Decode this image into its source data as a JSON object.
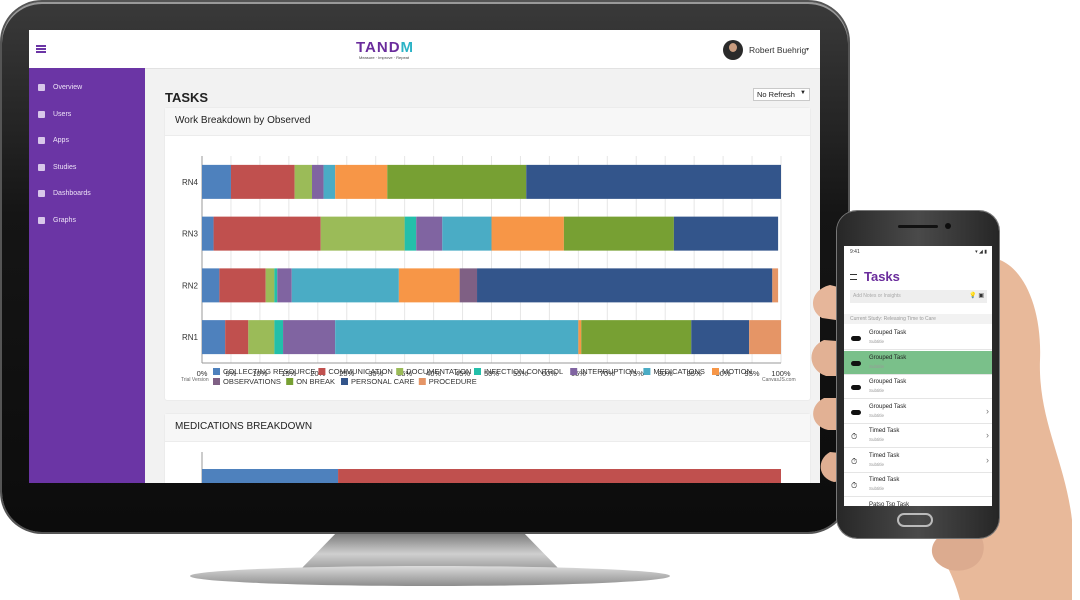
{
  "header": {
    "logo_main": "TAND",
    "logo_accent": "M",
    "logo_tagline": "Measure · Improve · Repeat",
    "user_name": "Robert Buehrig",
    "user_caret": "▾"
  },
  "sidebar": {
    "items": [
      {
        "label": "Overview",
        "icon": "overview-icon"
      },
      {
        "label": "Users",
        "icon": "users-icon"
      },
      {
        "label": "Apps",
        "icon": "apps-icon"
      },
      {
        "label": "Studies",
        "icon": "studies-icon"
      },
      {
        "label": "Dashboards",
        "icon": "dashboards-icon"
      },
      {
        "label": "Graphs",
        "icon": "graphs-icon"
      }
    ]
  },
  "page": {
    "title": "TASKS",
    "refresh_label": "No Refresh",
    "refresh_caret": "▼"
  },
  "card1": {
    "title": "Work Breakdown by Observed",
    "trial": "Trial Version",
    "credit": "CanvasJS.com"
  },
  "card2": {
    "title": "MEDICATIONS BREAKDOWN"
  },
  "chart_data": {
    "type": "bar",
    "stacked": "100%",
    "orientation": "horizontal",
    "categories": [
      "RN4",
      "RN3",
      "RN2",
      "RN1"
    ],
    "x_ticks": [
      "0%",
      "5%",
      "10%",
      "15%",
      "20%",
      "25%",
      "30%",
      "35%",
      "40%",
      "45%",
      "50%",
      "55%",
      "60%",
      "65%",
      "70%",
      "75%",
      "80%",
      "85%",
      "90%",
      "95%",
      "100%"
    ],
    "xlim": [
      0,
      100
    ],
    "grid": true,
    "legend_position": "bottom",
    "series": [
      {
        "name": "COLLECTING RESOURCE",
        "color": "#4e81bd",
        "values": [
          5,
          2,
          3,
          4
        ]
      },
      {
        "name": "COMMUNICATION",
        "color": "#c0504e",
        "values": [
          11,
          18.5,
          8,
          4
        ]
      },
      {
        "name": "DOCUMENTATION",
        "color": "#9bbb58",
        "values": [
          3,
          14.5,
          1.5,
          4.5
        ]
      },
      {
        "name": "INFECTION CONTROL",
        "color": "#23bfaa",
        "values": [
          0,
          2,
          0.5,
          1.5
        ]
      },
      {
        "name": "INTERRUPTION",
        "color": "#8064a1",
        "values": [
          2,
          4.5,
          2.5,
          9
        ]
      },
      {
        "name": "MEDICATIONS",
        "color": "#4aacc5",
        "values": [
          2,
          8.5,
          18.5,
          42
        ]
      },
      {
        "name": "MOTION",
        "color": "#f79647",
        "values": [
          9,
          12.5,
          10.5,
          0.5
        ]
      },
      {
        "name": "OBSERVATIONS",
        "color": "#7f6084",
        "values": [
          0,
          0,
          3,
          0
        ]
      },
      {
        "name": "ON BREAK",
        "color": "#77a033",
        "values": [
          24,
          19,
          0,
          19
        ]
      },
      {
        "name": "PERSONAL CARE",
        "color": "#33558b",
        "values": [
          44,
          18,
          51,
          10
        ]
      },
      {
        "name": "PROCEDURE",
        "color": "#e59566",
        "values": [
          0,
          0,
          1,
          5.5
        ]
      }
    ],
    "second_chart_visible": {
      "type": "bar",
      "segments": [
        {
          "color": "#4e81bd",
          "value": 23.5
        },
        {
          "color": "#c0504e",
          "value": 76.5
        }
      ]
    }
  },
  "phone": {
    "time": "9:41",
    "status": "▾ ◢ ▮",
    "title": "Tasks",
    "search_placeholder": "Add Notes or Insights",
    "search_icons": "💡 ▣",
    "study": "Current Study:  Releasing Time to Care",
    "rows": [
      {
        "title": "Grouped Task",
        "subtitle": "Subtitle",
        "icon": "toggle-icon",
        "chevron": "",
        "active": false
      },
      {
        "title": "Grouped Task",
        "subtitle": "Subtitle",
        "icon": "toggle-icon",
        "chevron": "",
        "active": true
      },
      {
        "title": "Grouped Task",
        "subtitle": "Subtitle",
        "icon": "toggle-icon",
        "chevron": "",
        "active": false
      },
      {
        "title": "Grouped Task",
        "subtitle": "Subtitle",
        "icon": "toggle-icon",
        "chevron": "›",
        "active": false
      },
      {
        "title": "Timed Task",
        "subtitle": "Subtitle",
        "icon": "stopwatch-icon",
        "chevron": "›",
        "active": false
      },
      {
        "title": "Timed Task",
        "subtitle": "Subtitle",
        "icon": "stopwatch-icon",
        "chevron": "›",
        "active": false
      },
      {
        "title": "Timed Task",
        "subtitle": "Subtitle",
        "icon": "stopwatch-icon",
        "chevron": "",
        "active": false
      },
      {
        "title": "Patso Tsp Task",
        "subtitle": "",
        "icon": "list-icon",
        "chevron": "",
        "active": false
      }
    ]
  }
}
